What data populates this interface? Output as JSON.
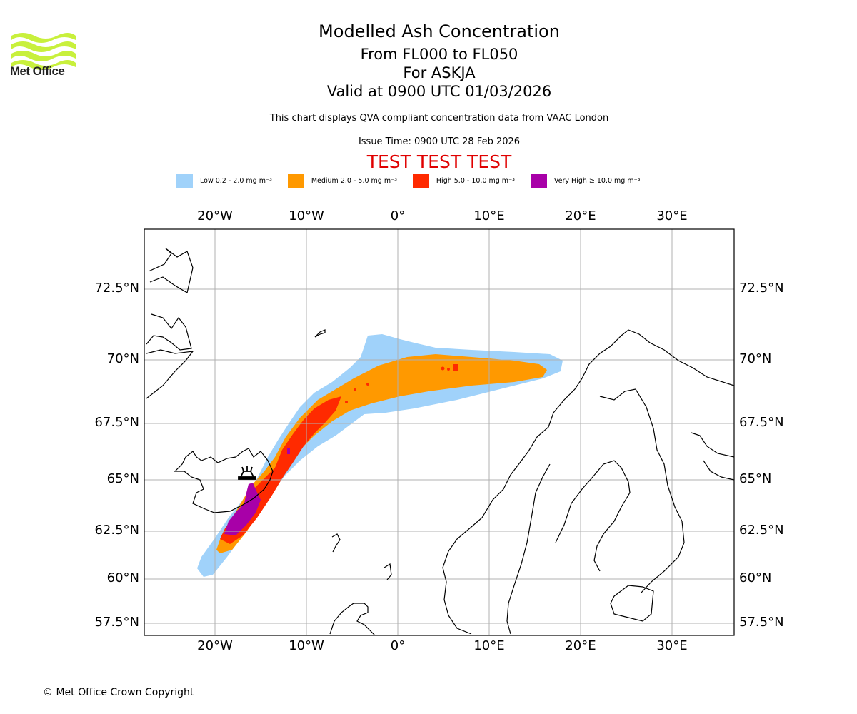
{
  "logo": {
    "name": "Met Office",
    "icon": "met-office-waves-logo",
    "color": "#c8f03c"
  },
  "titles": {
    "main": "Modelled Ash Concentration",
    "levels": "From FL000 to FL050",
    "volcano": "For ASKJA",
    "valid": "Valid at 0900 UTC 01/03/2026",
    "subtitle": "This chart displays QVA compliant concentration data from VAAC London",
    "issue": "Issue Time: 0900 UTC 28 Feb 2026",
    "test_banner": "TEST TEST TEST"
  },
  "colors": {
    "low": "#a0d2fa",
    "medium": "#ff9900",
    "high": "#ff2a00",
    "very_high": "#a800a8",
    "test_banner": "#e00000",
    "grid": "#b0b0b0"
  },
  "legend": [
    {
      "label": "Low 0.2 - 2.0 mg m⁻³",
      "color": "#a0d2fa"
    },
    {
      "label": "Medium 2.0 - 5.0 mg m⁻³",
      "color": "#ff9900"
    },
    {
      "label": "High 5.0 - 10.0 mg m⁻³",
      "color": "#ff2a00"
    },
    {
      "label": "Very High ≥ 10.0 mg m⁻³",
      "color": "#a800a8"
    }
  ],
  "chart_data": {
    "type": "map",
    "title": "Modelled Ash Concentration",
    "region": "North Atlantic / Scandinavia",
    "lon_ticks": [
      "20°W",
      "10°W",
      "0°",
      "10°E",
      "20°E",
      "30°E"
    ],
    "lat_ticks": [
      "72.5°N",
      "70°N",
      "67.5°N",
      "65°N",
      "62.5°N",
      "60°N",
      "57.5°N"
    ],
    "lon_values": [
      -20,
      -10,
      0,
      10,
      20,
      30
    ],
    "lat_values": [
      72.5,
      70,
      67.5,
      65,
      62.5,
      60,
      57.5
    ],
    "grid": true,
    "volcano": {
      "name": "ASKJA",
      "marker": "volcano-icon",
      "lon": -16.7,
      "lat": 65.0
    },
    "ash_plume": {
      "description": "Plume extends from Iceland south-west to ~60.5N 21W and north-east to northern Norway ~69.5N 17E",
      "levels": [
        "low",
        "medium",
        "high",
        "very_high"
      ]
    }
  },
  "footer": {
    "copyright": "© Met Office Crown Copyright"
  }
}
